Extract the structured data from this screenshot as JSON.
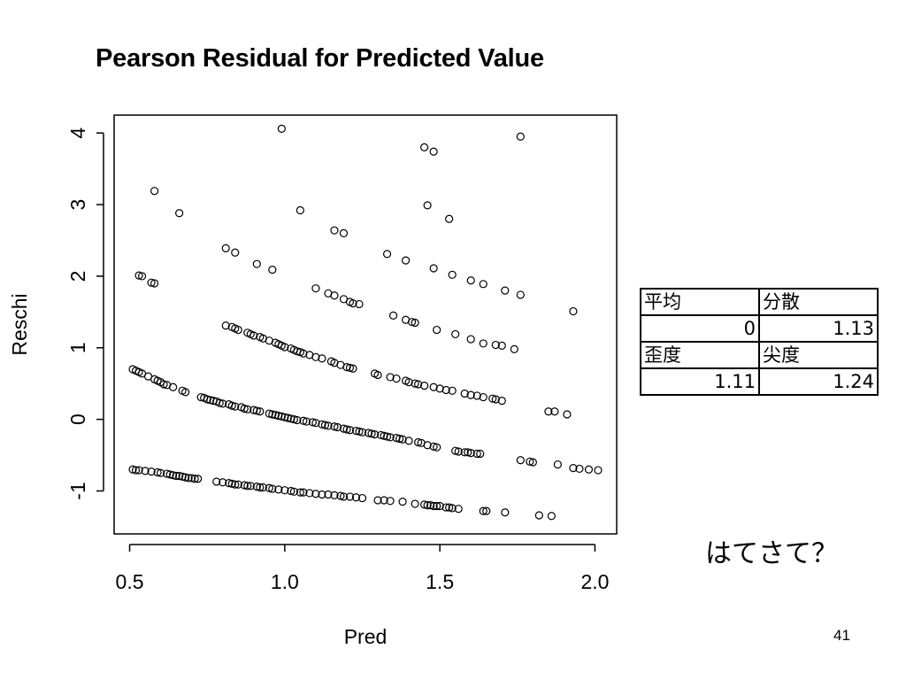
{
  "slide": {
    "title": "Pearson Residual for Predicted Value",
    "note": "はてさて？",
    "page_number": "41"
  },
  "stats_table": {
    "rows": [
      {
        "label_a": "平均",
        "label_b": "分散"
      },
      {
        "value_a": "0",
        "value_b": "1.13"
      },
      {
        "label_a": "歪度",
        "label_b": "尖度"
      },
      {
        "value_a": "1.11",
        "value_b": "1.24"
      }
    ]
  },
  "chart_data": {
    "type": "scatter",
    "title": "Pearson Residual for Predicted Value",
    "xlabel": "Pred",
    "ylabel": "Reschi",
    "xlim": [
      0.45,
      2.07
    ],
    "ylim": [
      -1.6,
      4.25
    ],
    "xticks": [
      "0.5",
      "1.0",
      "1.5",
      "2.0"
    ],
    "yticks": [
      "-1",
      "0",
      "1",
      "2",
      "3",
      "4"
    ],
    "marker": "open-circle",
    "grid": false,
    "points": [
      [
        0.51,
        -0.7
      ],
      [
        0.52,
        -0.71
      ],
      [
        0.53,
        -0.71
      ],
      [
        0.55,
        -0.72
      ],
      [
        0.57,
        -0.73
      ],
      [
        0.59,
        -0.74
      ],
      [
        0.6,
        -0.75
      ],
      [
        0.62,
        -0.76
      ],
      [
        0.63,
        -0.77
      ],
      [
        0.64,
        -0.78
      ],
      [
        0.65,
        -0.79
      ],
      [
        0.66,
        -0.79
      ],
      [
        0.67,
        -0.8
      ],
      [
        0.68,
        -0.81
      ],
      [
        0.69,
        -0.82
      ],
      [
        0.7,
        -0.82
      ],
      [
        0.71,
        -0.83
      ],
      [
        0.72,
        -0.83
      ],
      [
        0.78,
        -0.87
      ],
      [
        0.8,
        -0.88
      ],
      [
        0.82,
        -0.89
      ],
      [
        0.83,
        -0.9
      ],
      [
        0.84,
        -0.91
      ],
      [
        0.85,
        -0.91
      ],
      [
        0.87,
        -0.92
      ],
      [
        0.88,
        -0.93
      ],
      [
        0.89,
        -0.93
      ],
      [
        0.91,
        -0.94
      ],
      [
        0.92,
        -0.95
      ],
      [
        0.93,
        -0.95
      ],
      [
        0.95,
        -0.96
      ],
      [
        0.96,
        -0.97
      ],
      [
        0.98,
        -0.98
      ],
      [
        1.0,
        -0.99
      ],
      [
        1.02,
        -1.0
      ],
      [
        1.03,
        -1.01
      ],
      [
        1.05,
        -1.02
      ],
      [
        1.06,
        -1.02
      ],
      [
        1.08,
        -1.03
      ],
      [
        1.1,
        -1.04
      ],
      [
        1.12,
        -1.05
      ],
      [
        1.14,
        -1.05
      ],
      [
        1.16,
        -1.06
      ],
      [
        1.18,
        -1.07
      ],
      [
        1.19,
        -1.08
      ],
      [
        1.21,
        -1.08
      ],
      [
        1.23,
        -1.09
      ],
      [
        1.25,
        -1.1
      ],
      [
        1.3,
        -1.13
      ],
      [
        1.32,
        -1.13
      ],
      [
        1.34,
        -1.14
      ],
      [
        1.38,
        -1.15
      ],
      [
        1.42,
        -1.18
      ],
      [
        1.45,
        -1.19
      ],
      [
        1.46,
        -1.2
      ],
      [
        1.47,
        -1.2
      ],
      [
        1.48,
        -1.21
      ],
      [
        1.49,
        -1.21
      ],
      [
        1.5,
        -1.21
      ],
      [
        1.52,
        -1.23
      ],
      [
        1.53,
        -1.23
      ],
      [
        1.54,
        -1.24
      ],
      [
        1.56,
        -1.25
      ],
      [
        1.64,
        -1.28
      ],
      [
        1.65,
        -1.28
      ],
      [
        1.71,
        -1.3
      ],
      [
        1.82,
        -1.34
      ],
      [
        1.86,
        -1.35
      ],
      [
        0.51,
        0.7
      ],
      [
        0.52,
        0.68
      ],
      [
        0.53,
        0.66
      ],
      [
        0.54,
        0.64
      ],
      [
        0.56,
        0.6
      ],
      [
        0.58,
        0.56
      ],
      [
        0.59,
        0.54
      ],
      [
        0.6,
        0.52
      ],
      [
        0.61,
        0.49
      ],
      [
        0.62,
        0.48
      ],
      [
        0.64,
        0.45
      ],
      [
        0.67,
        0.4
      ],
      [
        0.68,
        0.38
      ],
      [
        0.73,
        0.31
      ],
      [
        0.74,
        0.3
      ],
      [
        0.75,
        0.28
      ],
      [
        0.76,
        0.27
      ],
      [
        0.77,
        0.26
      ],
      [
        0.78,
        0.25
      ],
      [
        0.79,
        0.23
      ],
      [
        0.8,
        0.22
      ],
      [
        0.82,
        0.21
      ],
      [
        0.83,
        0.19
      ],
      [
        0.84,
        0.18
      ],
      [
        0.86,
        0.17
      ],
      [
        0.87,
        0.15
      ],
      [
        0.88,
        0.14
      ],
      [
        0.9,
        0.13
      ],
      [
        0.91,
        0.12
      ],
      [
        0.92,
        0.11
      ],
      [
        0.95,
        0.08
      ],
      [
        0.96,
        0.07
      ],
      [
        0.97,
        0.06
      ],
      [
        0.98,
        0.05
      ],
      [
        0.99,
        0.04
      ],
      [
        1.0,
        0.03
      ],
      [
        1.01,
        0.02
      ],
      [
        1.02,
        0.01
      ],
      [
        1.03,
        0.0
      ],
      [
        1.04,
        -0.01
      ],
      [
        1.06,
        -0.02
      ],
      [
        1.07,
        -0.03
      ],
      [
        1.09,
        -0.04
      ],
      [
        1.1,
        -0.05
      ],
      [
        1.12,
        -0.07
      ],
      [
        1.13,
        -0.08
      ],
      [
        1.14,
        -0.09
      ],
      [
        1.16,
        -0.1
      ],
      [
        1.17,
        -0.11
      ],
      [
        1.19,
        -0.13
      ],
      [
        1.2,
        -0.14
      ],
      [
        1.21,
        -0.15
      ],
      [
        1.23,
        -0.16
      ],
      [
        1.24,
        -0.17
      ],
      [
        1.25,
        -0.18
      ],
      [
        1.27,
        -0.19
      ],
      [
        1.28,
        -0.2
      ],
      [
        1.29,
        -0.21
      ],
      [
        1.31,
        -0.22
      ],
      [
        1.32,
        -0.23
      ],
      [
        1.33,
        -0.24
      ],
      [
        1.34,
        -0.25
      ],
      [
        1.36,
        -0.26
      ],
      [
        1.37,
        -0.27
      ],
      [
        1.38,
        -0.28
      ],
      [
        1.4,
        -0.3
      ],
      [
        1.43,
        -0.32
      ],
      [
        1.44,
        -0.33
      ],
      [
        1.46,
        -0.36
      ],
      [
        1.48,
        -0.38
      ],
      [
        1.49,
        -0.39
      ],
      [
        1.55,
        -0.44
      ],
      [
        1.56,
        -0.45
      ],
      [
        1.58,
        -0.46
      ],
      [
        1.59,
        -0.46
      ],
      [
        1.6,
        -0.47
      ],
      [
        1.62,
        -0.48
      ],
      [
        1.63,
        -0.48
      ],
      [
        1.76,
        -0.57
      ],
      [
        1.79,
        -0.59
      ],
      [
        1.8,
        -0.6
      ],
      [
        1.88,
        -0.63
      ],
      [
        1.93,
        -0.68
      ],
      [
        1.95,
        -0.69
      ],
      [
        1.98,
        -0.7
      ],
      [
        2.01,
        -0.71
      ],
      [
        0.81,
        1.31
      ],
      [
        0.83,
        1.29
      ],
      [
        0.84,
        1.27
      ],
      [
        0.85,
        1.25
      ],
      [
        0.88,
        1.21
      ],
      [
        0.89,
        1.19
      ],
      [
        0.9,
        1.17
      ],
      [
        0.92,
        1.15
      ],
      [
        0.93,
        1.13
      ],
      [
        0.95,
        1.1
      ],
      [
        0.97,
        1.07
      ],
      [
        0.98,
        1.05
      ],
      [
        0.99,
        1.03
      ],
      [
        1.0,
        1.01
      ],
      [
        1.02,
        0.99
      ],
      [
        1.03,
        0.97
      ],
      [
        1.04,
        0.95
      ],
      [
        1.05,
        0.94
      ],
      [
        1.06,
        0.92
      ],
      [
        1.08,
        0.9
      ],
      [
        1.1,
        0.87
      ],
      [
        1.12,
        0.85
      ],
      [
        1.15,
        0.81
      ],
      [
        1.16,
        0.79
      ],
      [
        1.18,
        0.76
      ],
      [
        1.2,
        0.73
      ],
      [
        1.21,
        0.72
      ],
      [
        1.22,
        0.71
      ],
      [
        1.29,
        0.64
      ],
      [
        1.3,
        0.62
      ],
      [
        1.34,
        0.59
      ],
      [
        1.36,
        0.57
      ],
      [
        1.39,
        0.54
      ],
      [
        1.4,
        0.52
      ],
      [
        1.42,
        0.5
      ],
      [
        1.43,
        0.49
      ],
      [
        1.45,
        0.47
      ],
      [
        1.48,
        0.45
      ],
      [
        1.5,
        0.43
      ],
      [
        1.52,
        0.41
      ],
      [
        1.54,
        0.4
      ],
      [
        1.58,
        0.36
      ],
      [
        1.6,
        0.34
      ],
      [
        1.62,
        0.33
      ],
      [
        1.64,
        0.31
      ],
      [
        1.67,
        0.29
      ],
      [
        1.68,
        0.28
      ],
      [
        1.7,
        0.26
      ],
      [
        1.85,
        0.11
      ],
      [
        1.87,
        0.11
      ],
      [
        1.91,
        0.07
      ],
      [
        0.53,
        2.01
      ],
      [
        0.54,
        2.0
      ],
      [
        0.57,
        1.91
      ],
      [
        0.58,
        1.9
      ],
      [
        1.1,
        1.83
      ],
      [
        1.14,
        1.76
      ],
      [
        1.16,
        1.73
      ],
      [
        1.19,
        1.68
      ],
      [
        1.21,
        1.64
      ],
      [
        1.22,
        1.62
      ],
      [
        1.24,
        1.61
      ],
      [
        1.35,
        1.45
      ],
      [
        1.39,
        1.39
      ],
      [
        1.41,
        1.36
      ],
      [
        1.42,
        1.35
      ],
      [
        1.49,
        1.25
      ],
      [
        1.55,
        1.19
      ],
      [
        1.6,
        1.12
      ],
      [
        1.64,
        1.06
      ],
      [
        1.68,
        1.04
      ],
      [
        1.7,
        1.03
      ],
      [
        1.74,
        0.98
      ],
      [
        0.81,
        2.39
      ],
      [
        0.84,
        2.33
      ],
      [
        0.91,
        2.17
      ],
      [
        0.96,
        2.09
      ],
      [
        1.33,
        2.31
      ],
      [
        1.39,
        2.22
      ],
      [
        1.48,
        2.11
      ],
      [
        1.54,
        2.02
      ],
      [
        1.6,
        1.94
      ],
      [
        1.64,
        1.89
      ],
      [
        1.71,
        1.8
      ],
      [
        1.76,
        1.74
      ],
      [
        1.93,
        1.51
      ],
      [
        0.58,
        3.19
      ],
      [
        0.66,
        2.88
      ],
      [
        1.05,
        2.92
      ],
      [
        1.16,
        2.64
      ],
      [
        1.19,
        2.6
      ],
      [
        1.46,
        2.99
      ],
      [
        1.53,
        2.8
      ],
      [
        0.99,
        4.06
      ],
      [
        1.45,
        3.8
      ],
      [
        1.48,
        3.74
      ],
      [
        1.76,
        3.95
      ]
    ]
  }
}
